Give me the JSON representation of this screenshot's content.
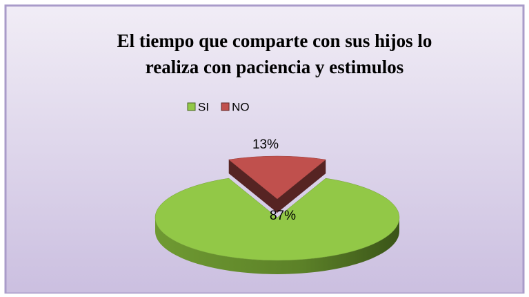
{
  "chart_data": {
    "type": "pie3d",
    "title": [
      "El tiempo que comparte con sus hijos lo",
      "realiza con paciencia y estimulos"
    ],
    "categories": [
      "SI",
      "NO"
    ],
    "values": [
      87,
      13
    ],
    "value_labels": [
      "87%",
      "13%"
    ],
    "colors": [
      "#92c847",
      "#c0504d"
    ],
    "legend": "top"
  }
}
